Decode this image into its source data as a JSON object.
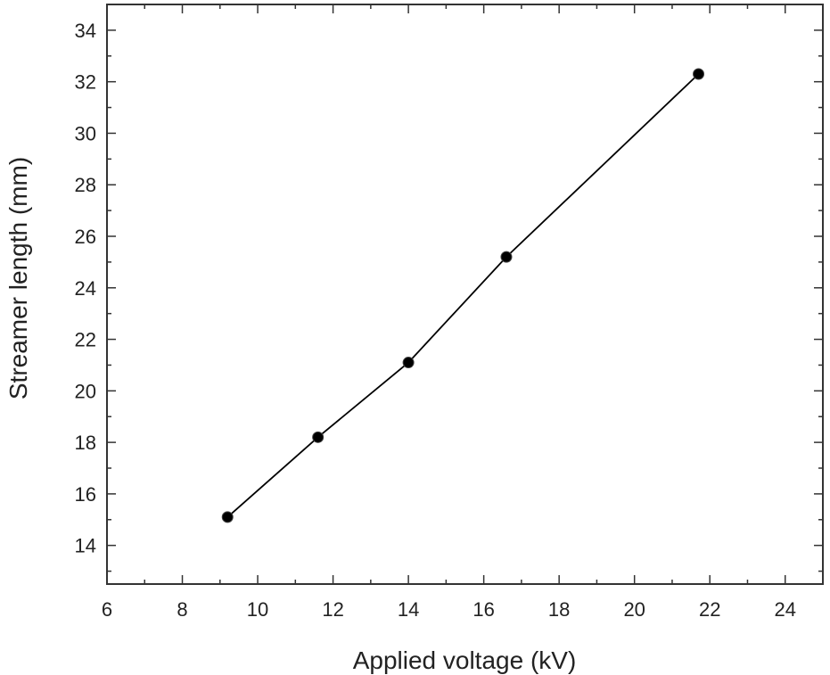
{
  "chart_data": {
    "type": "line",
    "title": "",
    "xlabel": "Applied voltage (kV)",
    "ylabel": "Streamer length (mm)",
    "xlim": [
      6,
      25
    ],
    "ylim": [
      12.5,
      35
    ],
    "xticks": [
      6,
      8,
      10,
      12,
      14,
      16,
      18,
      20,
      22,
      24
    ],
    "yticks": [
      14,
      16,
      18,
      20,
      22,
      24,
      26,
      28,
      30,
      32,
      34
    ],
    "grid": false,
    "legend": "none",
    "series": [
      {
        "x": [
          9.2,
          11.6,
          14.0,
          16.6,
          21.7
        ],
        "values": [
          15.1,
          18.2,
          21.1,
          25.2,
          32.3
        ],
        "marker": "circle",
        "color": "#000000"
      }
    ]
  }
}
